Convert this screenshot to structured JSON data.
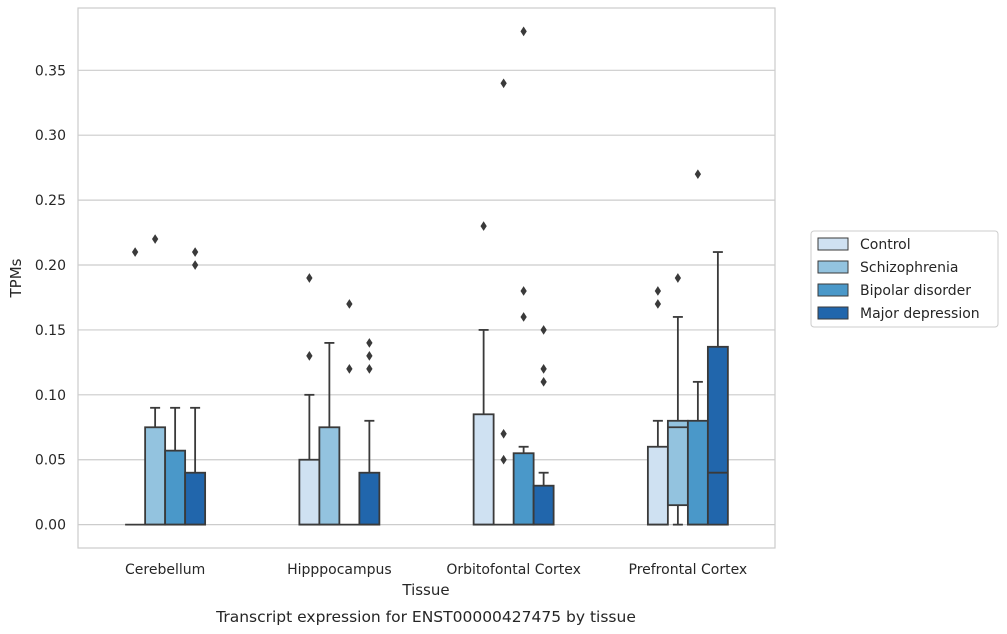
{
  "chart_data": {
    "type": "boxplot",
    "title": "",
    "caption": "Transcript expression for ENST00000427475 by tissue",
    "xlabel": "Tissue",
    "ylabel": "TPMs",
    "ylim": [
      -0.018,
      0.398
    ],
    "yticks": [
      0.0,
      0.05,
      0.1,
      0.15,
      0.2,
      0.25,
      0.3,
      0.35
    ],
    "ytick_labels": [
      "0.00",
      "0.05",
      "0.10",
      "0.15",
      "0.20",
      "0.25",
      "0.30",
      "0.35"
    ],
    "grid": "horizontal",
    "legend_position": "right",
    "categories": [
      "Cerebellum",
      "Hipppocampus",
      "Orbitofontal Cortex",
      "Prefrontal Cortex"
    ],
    "series": [
      {
        "name": "Control",
        "color": "#cfe1f2",
        "boxes": [
          {
            "q1": 0.0,
            "median": 0.0,
            "q3": 0.0,
            "whisker_low": 0.0,
            "whisker_high": 0.0,
            "outliers": [
              0.21
            ]
          },
          {
            "q1": 0.0,
            "median": 0.0,
            "q3": 0.05,
            "whisker_low": 0.0,
            "whisker_high": 0.1,
            "outliers": [
              0.13,
              0.19
            ]
          },
          {
            "q1": 0.0,
            "median": 0.0,
            "q3": 0.085,
            "whisker_low": 0.0,
            "whisker_high": 0.15,
            "outliers": [
              0.23
            ]
          },
          {
            "q1": 0.0,
            "median": 0.0,
            "q3": 0.06,
            "whisker_low": 0.0,
            "whisker_high": 0.08,
            "outliers": [
              0.17,
              0.18
            ]
          }
        ]
      },
      {
        "name": "Schizophrenia",
        "color": "#93c3df",
        "boxes": [
          {
            "q1": 0.0,
            "median": 0.0,
            "q3": 0.075,
            "whisker_low": 0.0,
            "whisker_high": 0.09,
            "outliers": [
              0.22
            ]
          },
          {
            "q1": 0.0,
            "median": 0.0,
            "q3": 0.075,
            "whisker_low": 0.0,
            "whisker_high": 0.14,
            "outliers": []
          },
          {
            "q1": 0.0,
            "median": 0.0,
            "q3": 0.0,
            "whisker_low": 0.0,
            "whisker_high": 0.0,
            "outliers": [
              0.05,
              0.07,
              0.34
            ]
          },
          {
            "q1": 0.015,
            "median": 0.075,
            "q3": 0.08,
            "whisker_low": 0.0,
            "whisker_high": 0.16,
            "outliers": [
              0.19
            ]
          }
        ]
      },
      {
        "name": "Bipolar disorder",
        "color": "#4a98c9",
        "boxes": [
          {
            "q1": 0.0,
            "median": 0.0,
            "q3": 0.057,
            "whisker_low": 0.0,
            "whisker_high": 0.09,
            "outliers": []
          },
          {
            "q1": 0.0,
            "median": 0.0,
            "q3": 0.0,
            "whisker_low": 0.0,
            "whisker_high": 0.0,
            "outliers": [
              0.12,
              0.17
            ]
          },
          {
            "q1": 0.0,
            "median": 0.0,
            "q3": 0.055,
            "whisker_low": 0.0,
            "whisker_high": 0.06,
            "outliers": [
              0.16,
              0.18,
              0.38
            ]
          },
          {
            "q1": 0.0,
            "median": 0.0,
            "q3": 0.08,
            "whisker_low": 0.0,
            "whisker_high": 0.11,
            "outliers": [
              0.27
            ]
          }
        ]
      },
      {
        "name": "Major depression",
        "color": "#2166ac",
        "boxes": [
          {
            "q1": 0.0,
            "median": 0.0,
            "q3": 0.04,
            "whisker_low": 0.0,
            "whisker_high": 0.09,
            "outliers": [
              0.2,
              0.21
            ]
          },
          {
            "q1": 0.0,
            "median": 0.0,
            "q3": 0.04,
            "whisker_low": 0.0,
            "whisker_high": 0.08,
            "outliers": [
              0.12,
              0.13,
              0.14
            ]
          },
          {
            "q1": 0.0,
            "median": 0.0,
            "q3": 0.03,
            "whisker_low": 0.0,
            "whisker_high": 0.04,
            "outliers": [
              0.11,
              0.12,
              0.15
            ]
          },
          {
            "q1": 0.0,
            "median": 0.04,
            "q3": 0.137,
            "whisker_low": 0.0,
            "whisker_high": 0.21,
            "outliers": []
          }
        ]
      }
    ]
  }
}
